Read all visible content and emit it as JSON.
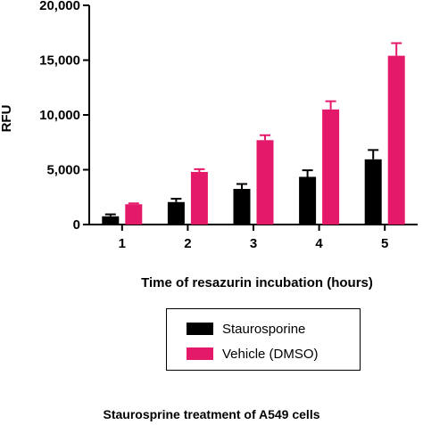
{
  "chart_data": {
    "type": "bar",
    "categories": [
      "1",
      "2",
      "3",
      "4",
      "5"
    ],
    "series": [
      {
        "name": "Staurosporine",
        "values": [
          750,
          2050,
          3250,
          4350,
          5950
        ],
        "errors": [
          180,
          300,
          450,
          600,
          850
        ],
        "color": "#000000"
      },
      {
        "name": "Vehicle (DMSO)",
        "values": [
          1850,
          4800,
          7700,
          10500,
          15400
        ],
        "errors": [
          80,
          250,
          450,
          750,
          1150
        ],
        "color": "#e5196a"
      }
    ],
    "title": "",
    "xlabel": "Time of resazurin incubation (hours)",
    "ylabel": "RFU",
    "ylim": [
      0,
      20000
    ],
    "yticks": [
      0,
      5000,
      10000,
      15000,
      20000
    ],
    "ytick_labels": [
      "0",
      "5,000",
      "10,000",
      "15,000",
      "20,000"
    ],
    "legend_position": "bottom-center",
    "grid": false
  },
  "caption": "Staurosprine treatment of A549 cells"
}
